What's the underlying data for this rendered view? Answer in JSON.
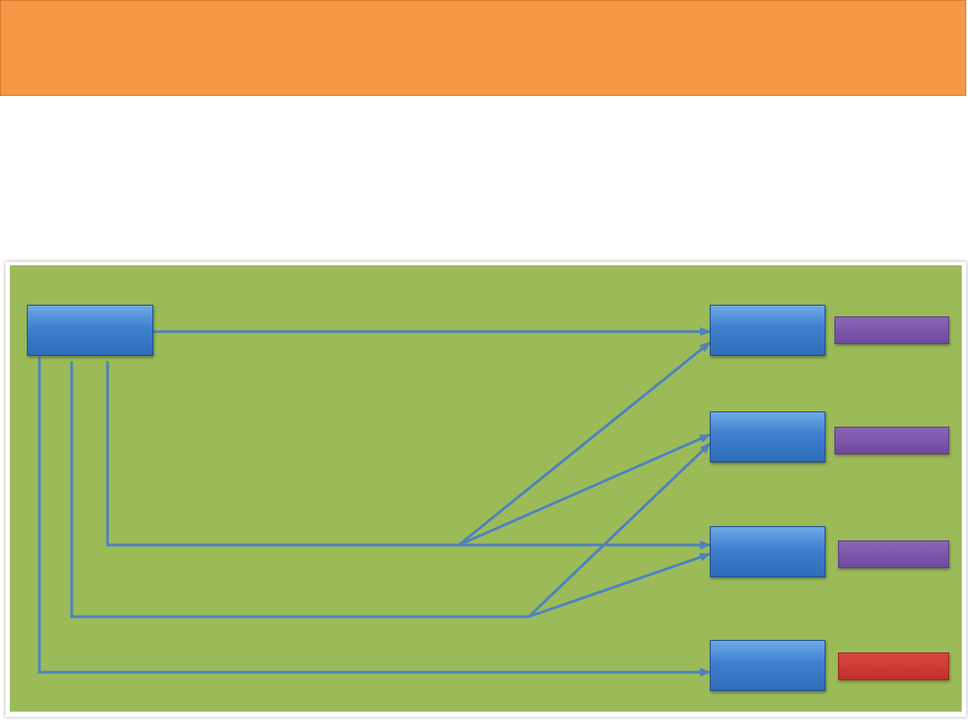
{
  "header": {
    "title": ""
  },
  "intro": {
    "text": ""
  },
  "diagram": {
    "source_node": {
      "label": ""
    },
    "target_nodes": [
      {
        "label": "",
        "tag": "",
        "tag_color": "purple"
      },
      {
        "label": "",
        "tag": "",
        "tag_color": "purple"
      },
      {
        "label": "",
        "tag": "",
        "tag_color": "purple"
      },
      {
        "label": "",
        "tag": "",
        "tag_color": "red"
      }
    ]
  },
  "colors": {
    "banner": "#f79646",
    "panel": "#9bbb59",
    "node": "#4f81bd",
    "connector": "#4f81bd",
    "tag_purple": "#7f5fa8",
    "tag_red": "#c0392b"
  }
}
